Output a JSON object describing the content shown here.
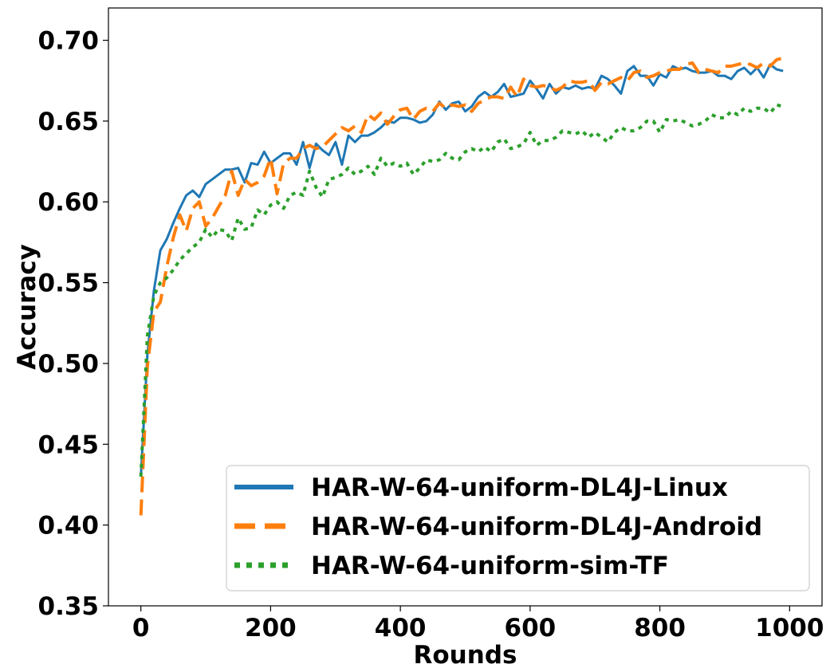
{
  "chart_data": {
    "type": "line",
    "title": "",
    "xlabel": "Rounds",
    "ylabel": "Accuracy",
    "xlim": [
      -50,
      1050
    ],
    "ylim": [
      0.35,
      0.72
    ],
    "xticks": [
      0,
      200,
      400,
      600,
      800,
      1000
    ],
    "yticks": [
      0.35,
      0.4,
      0.45,
      0.5,
      0.55,
      0.6,
      0.65,
      0.7
    ],
    "xtick_labels": [
      "0",
      "200",
      "400",
      "600",
      "800",
      "1000"
    ],
    "ytick_labels": [
      "0.35",
      "0.40",
      "0.45",
      "0.50",
      "0.55",
      "0.60",
      "0.65",
      "0.70"
    ],
    "grid": false,
    "legend_position": "lower-right",
    "series": [
      {
        "name": "HAR-W-64-uniform-DL4J-Linux",
        "color": "#1f77b4",
        "style": "solid",
        "x": [
          0,
          10,
          20,
          30,
          40,
          50,
          60,
          70,
          80,
          90,
          100,
          110,
          120,
          130,
          140,
          150,
          160,
          170,
          180,
          190,
          200,
          210,
          220,
          230,
          240,
          250,
          260,
          270,
          280,
          290,
          300,
          310,
          320,
          330,
          340,
          350,
          360,
          370,
          380,
          390,
          400,
          410,
          420,
          430,
          440,
          450,
          460,
          470,
          480,
          490,
          500,
          510,
          520,
          530,
          540,
          550,
          560,
          570,
          580,
          590,
          600,
          610,
          620,
          630,
          640,
          650,
          660,
          670,
          680,
          690,
          700,
          710,
          720,
          730,
          740,
          750,
          760,
          770,
          780,
          790,
          800,
          810,
          820,
          830,
          840,
          850,
          860,
          870,
          880,
          890,
          900,
          910,
          920,
          930,
          940,
          950,
          960,
          970,
          980,
          990
        ],
        "y": [
          0.43,
          0.505,
          0.545,
          0.57,
          0.577,
          0.587,
          0.596,
          0.604,
          0.607,
          0.603,
          0.611,
          0.614,
          0.617,
          0.62,
          0.62,
          0.621,
          0.612,
          0.624,
          0.623,
          0.631,
          0.624,
          0.627,
          0.63,
          0.63,
          0.623,
          0.637,
          0.621,
          0.636,
          0.632,
          0.629,
          0.637,
          0.623,
          0.641,
          0.637,
          0.641,
          0.641,
          0.643,
          0.646,
          0.65,
          0.649,
          0.652,
          0.652,
          0.651,
          0.649,
          0.65,
          0.654,
          0.662,
          0.657,
          0.661,
          0.662,
          0.656,
          0.659,
          0.665,
          0.668,
          0.665,
          0.668,
          0.673,
          0.665,
          0.666,
          0.667,
          0.675,
          0.67,
          0.664,
          0.673,
          0.667,
          0.671,
          0.67,
          0.672,
          0.67,
          0.671,
          0.67,
          0.678,
          0.676,
          0.672,
          0.667,
          0.681,
          0.684,
          0.678,
          0.678,
          0.672,
          0.679,
          0.677,
          0.684,
          0.682,
          0.683,
          0.681,
          0.68,
          0.68,
          0.681,
          0.678,
          0.678,
          0.676,
          0.681,
          0.683,
          0.679,
          0.683,
          0.677,
          0.685,
          0.682,
          0.681
        ]
      },
      {
        "name": "HAR-W-64-uniform-DL4J-Android",
        "color": "#ff7f0e",
        "style": "dashed",
        "x": [
          0,
          10,
          20,
          30,
          40,
          50,
          60,
          70,
          80,
          90,
          100,
          110,
          120,
          130,
          140,
          150,
          160,
          170,
          180,
          190,
          200,
          210,
          220,
          230,
          240,
          250,
          260,
          270,
          280,
          290,
          300,
          310,
          320,
          330,
          340,
          350,
          360,
          370,
          380,
          390,
          400,
          410,
          420,
          430,
          440,
          450,
          460,
          470,
          480,
          490,
          500,
          510,
          520,
          530,
          540,
          550,
          560,
          570,
          580,
          590,
          600,
          610,
          620,
          630,
          640,
          650,
          660,
          670,
          680,
          690,
          700,
          710,
          720,
          730,
          740,
          750,
          760,
          770,
          780,
          790,
          800,
          810,
          820,
          830,
          840,
          850,
          860,
          870,
          880,
          890,
          900,
          910,
          920,
          930,
          940,
          950,
          960,
          970,
          980,
          990
        ],
        "y": [
          0.406,
          0.498,
          0.532,
          0.538,
          0.56,
          0.578,
          0.592,
          0.582,
          0.596,
          0.6,
          0.585,
          0.59,
          0.597,
          0.604,
          0.619,
          0.604,
          0.614,
          0.61,
          0.612,
          0.616,
          0.627,
          0.605,
          0.624,
          0.627,
          0.627,
          0.633,
          0.635,
          0.633,
          0.634,
          0.638,
          0.642,
          0.646,
          0.644,
          0.647,
          0.643,
          0.654,
          0.651,
          0.655,
          0.648,
          0.653,
          0.657,
          0.658,
          0.651,
          0.656,
          0.658,
          0.656,
          0.661,
          0.658,
          0.66,
          0.659,
          0.66,
          0.656,
          0.661,
          0.663,
          0.665,
          0.665,
          0.664,
          0.671,
          0.665,
          0.676,
          0.672,
          0.671,
          0.672,
          0.671,
          0.669,
          0.671,
          0.675,
          0.674,
          0.674,
          0.675,
          0.669,
          0.674,
          0.673,
          0.675,
          0.677,
          0.675,
          0.68,
          0.681,
          0.677,
          0.678,
          0.68,
          0.681,
          0.682,
          0.682,
          0.685,
          0.686,
          0.68,
          0.682,
          0.681,
          0.68,
          0.684,
          0.684,
          0.685,
          0.686,
          0.685,
          0.683,
          0.686,
          0.684,
          0.688,
          0.689
        ]
      },
      {
        "name": "HAR-W-64-uniform-sim-TF",
        "color": "#2ca02c",
        "style": "dotted",
        "x": [
          0,
          10,
          20,
          30,
          40,
          50,
          60,
          70,
          80,
          90,
          100,
          110,
          120,
          130,
          140,
          150,
          160,
          170,
          180,
          190,
          200,
          210,
          220,
          230,
          240,
          250,
          260,
          270,
          280,
          290,
          300,
          310,
          320,
          330,
          340,
          350,
          360,
          370,
          380,
          390,
          400,
          410,
          420,
          430,
          440,
          450,
          460,
          470,
          480,
          490,
          500,
          510,
          520,
          530,
          540,
          550,
          560,
          570,
          580,
          590,
          600,
          610,
          620,
          630,
          640,
          650,
          660,
          670,
          680,
          690,
          700,
          710,
          720,
          730,
          740,
          750,
          760,
          770,
          780,
          790,
          800,
          810,
          820,
          830,
          840,
          850,
          860,
          870,
          880,
          890,
          900,
          910,
          920,
          930,
          940,
          950,
          960,
          970,
          980,
          990
        ],
        "y": [
          0.43,
          0.517,
          0.542,
          0.55,
          0.553,
          0.558,
          0.564,
          0.568,
          0.572,
          0.575,
          0.583,
          0.578,
          0.583,
          0.582,
          0.576,
          0.59,
          0.583,
          0.584,
          0.595,
          0.592,
          0.598,
          0.6,
          0.596,
          0.604,
          0.606,
          0.604,
          0.619,
          0.609,
          0.603,
          0.614,
          0.615,
          0.617,
          0.621,
          0.617,
          0.619,
          0.622,
          0.617,
          0.627,
          0.622,
          0.624,
          0.622,
          0.624,
          0.617,
          0.621,
          0.626,
          0.625,
          0.626,
          0.63,
          0.627,
          0.626,
          0.631,
          0.633,
          0.631,
          0.634,
          0.631,
          0.637,
          0.639,
          0.633,
          0.634,
          0.636,
          0.643,
          0.635,
          0.638,
          0.638,
          0.64,
          0.644,
          0.643,
          0.642,
          0.644,
          0.64,
          0.643,
          0.64,
          0.637,
          0.643,
          0.646,
          0.644,
          0.644,
          0.646,
          0.65,
          0.65,
          0.643,
          0.651,
          0.65,
          0.651,
          0.649,
          0.647,
          0.648,
          0.65,
          0.654,
          0.652,
          0.652,
          0.656,
          0.654,
          0.658,
          0.656,
          0.658,
          0.658,
          0.655,
          0.66,
          0.659
        ]
      }
    ]
  }
}
